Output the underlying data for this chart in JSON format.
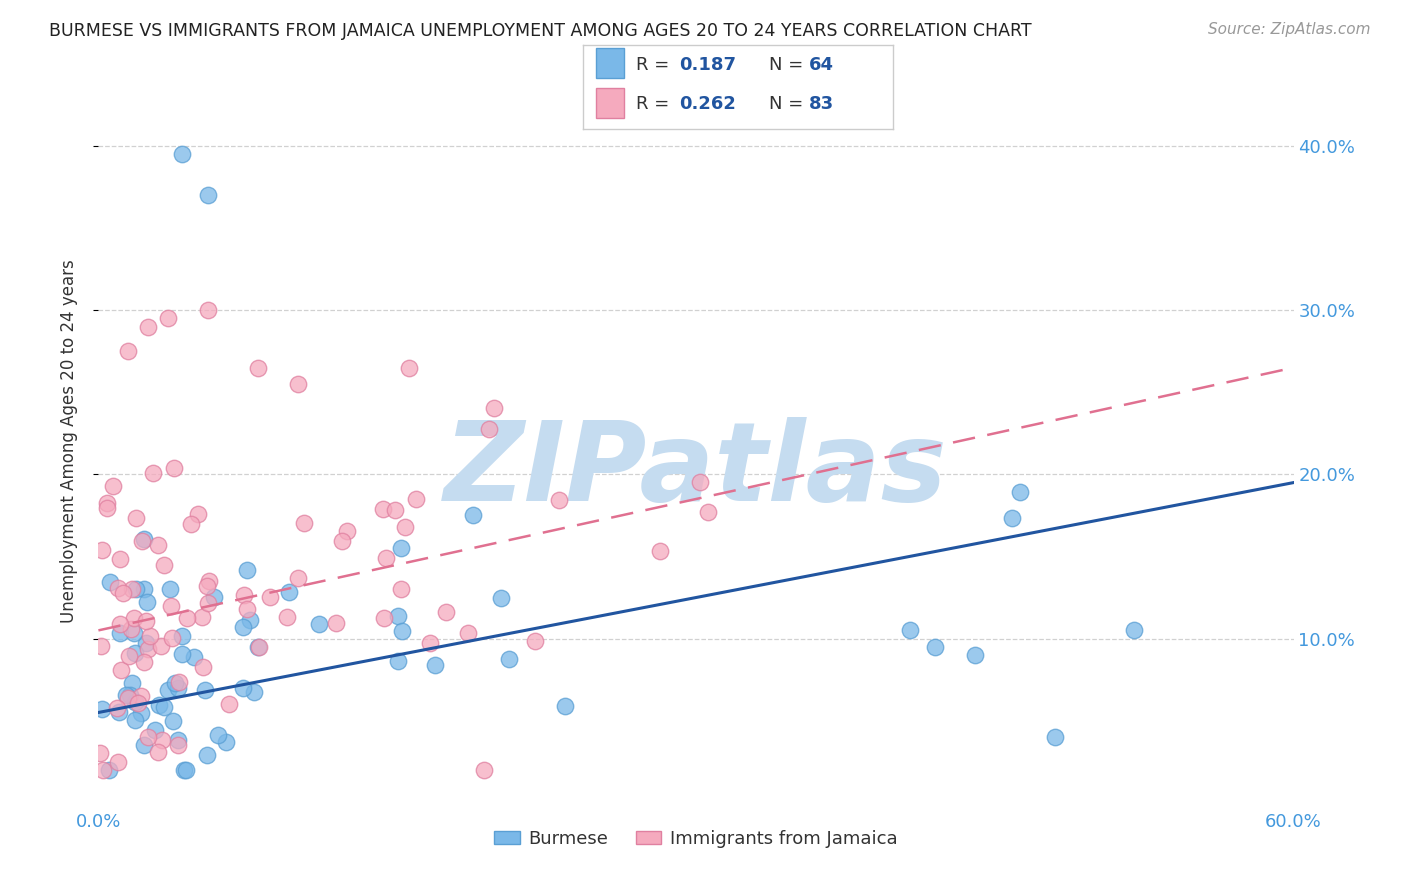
{
  "title": "BURMESE VS IMMIGRANTS FROM JAMAICA UNEMPLOYMENT AMONG AGES 20 TO 24 YEARS CORRELATION CHART",
  "source": "Source: ZipAtlas.com",
  "ylabel": "Unemployment Among Ages 20 to 24 years",
  "xlabel_burmese": "Burmese",
  "xlabel_jamaica": "Immigrants from Jamaica",
  "xmin": 0.0,
  "xmax": 0.6,
  "ymin": 0.0,
  "ymax": 0.44,
  "yticks": [
    0.1,
    0.2,
    0.3,
    0.4
  ],
  "ytick_labels": [
    "10.0%",
    "20.0%",
    "30.0%",
    "40.0%"
  ],
  "xticks": [
    0.0,
    0.1,
    0.2,
    0.3,
    0.4,
    0.5,
    0.6
  ],
  "xtick_labels": [
    "0.0%",
    "",
    "",
    "",
    "",
    "",
    "60.0%"
  ],
  "legend_r1": "0.187",
  "legend_n1": "64",
  "legend_r2": "0.262",
  "legend_n2": "83",
  "burmese_color": "#7ab8e8",
  "burmese_edge": "#5a9fd4",
  "jamaica_color": "#f5aabe",
  "jamaica_edge": "#e080a0",
  "blue_line_color": "#2155a0",
  "pink_line_color": "#e07090",
  "watermark": "ZIPatlas",
  "watermark_color": "#c5dcf0",
  "title_color": "#222222",
  "tick_color": "#4499dd",
  "grid_color": "#cccccc",
  "blue_line_start_y": 0.055,
  "blue_line_end_y": 0.195,
  "pink_line_start_y": 0.105,
  "pink_line_end_y": 0.265
}
